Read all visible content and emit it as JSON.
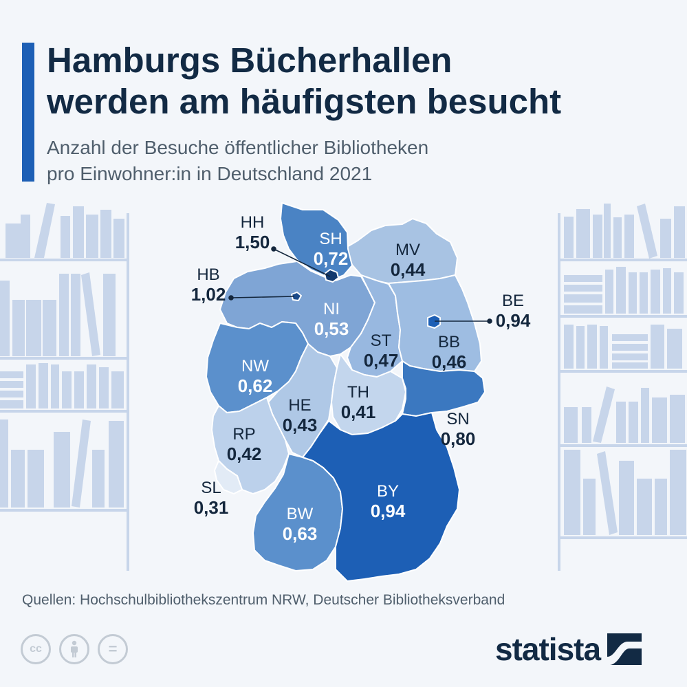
{
  "header": {
    "title_lines": [
      "Hamburgs Bücherhallen",
      "werden am häufigsten besucht"
    ],
    "subtitle_lines": [
      "Anzahl der Besuche öffentlicher Bibliotheken",
      "pro Einwohner:in in Deutschland 2021"
    ]
  },
  "map": {
    "unit": "Besuche pro Einwohner:in",
    "year": "2021",
    "regions": [
      {
        "code": "SH",
        "value": "0,72",
        "color": "#4a83c4"
      },
      {
        "code": "HH",
        "value": "1,50",
        "color": "#12396e"
      },
      {
        "code": "MV",
        "value": "0,44",
        "color": "#a8c3e3"
      },
      {
        "code": "HB",
        "value": "1,02",
        "color": "#1a4a8a"
      },
      {
        "code": "NI",
        "value": "0,53",
        "color": "#7fa5d5"
      },
      {
        "code": "BE",
        "value": "0,94",
        "color": "#1d5fb5"
      },
      {
        "code": "ST",
        "value": "0,47",
        "color": "#98b8e0"
      },
      {
        "code": "BB",
        "value": "0,46",
        "color": "#9ebde2"
      },
      {
        "code": "NW",
        "value": "0,62",
        "color": "#5b90cc"
      },
      {
        "code": "HE",
        "value": "0,43",
        "color": "#afc8e6"
      },
      {
        "code": "TH",
        "value": "0,41",
        "color": "#c3d6ed"
      },
      {
        "code": "SN",
        "value": "0,80",
        "color": "#3b78c0"
      },
      {
        "code": "RP",
        "value": "0,42",
        "color": "#bcd1eb"
      },
      {
        "code": "SL",
        "value": "0,31",
        "color": "#e2ebf6"
      },
      {
        "code": "BW",
        "value": "0,63",
        "color": "#5b90cc"
      },
      {
        "code": "BY",
        "value": "0,94",
        "color": "#1d5fb5"
      }
    ]
  },
  "footer": {
    "source": "Quellen: Hochschulbibliothekszentrum NRW, Deutscher Bibliotheksverband",
    "license_icons": [
      "cc-icon",
      "attribution-icon",
      "no-derivatives-icon"
    ],
    "license_glyphs": [
      "cc",
      "="
    ],
    "logo_text": "statista"
  },
  "colors": {
    "accent": "#1d5fb5",
    "title": "#122a44",
    "shelf": "#c7d5ea"
  }
}
